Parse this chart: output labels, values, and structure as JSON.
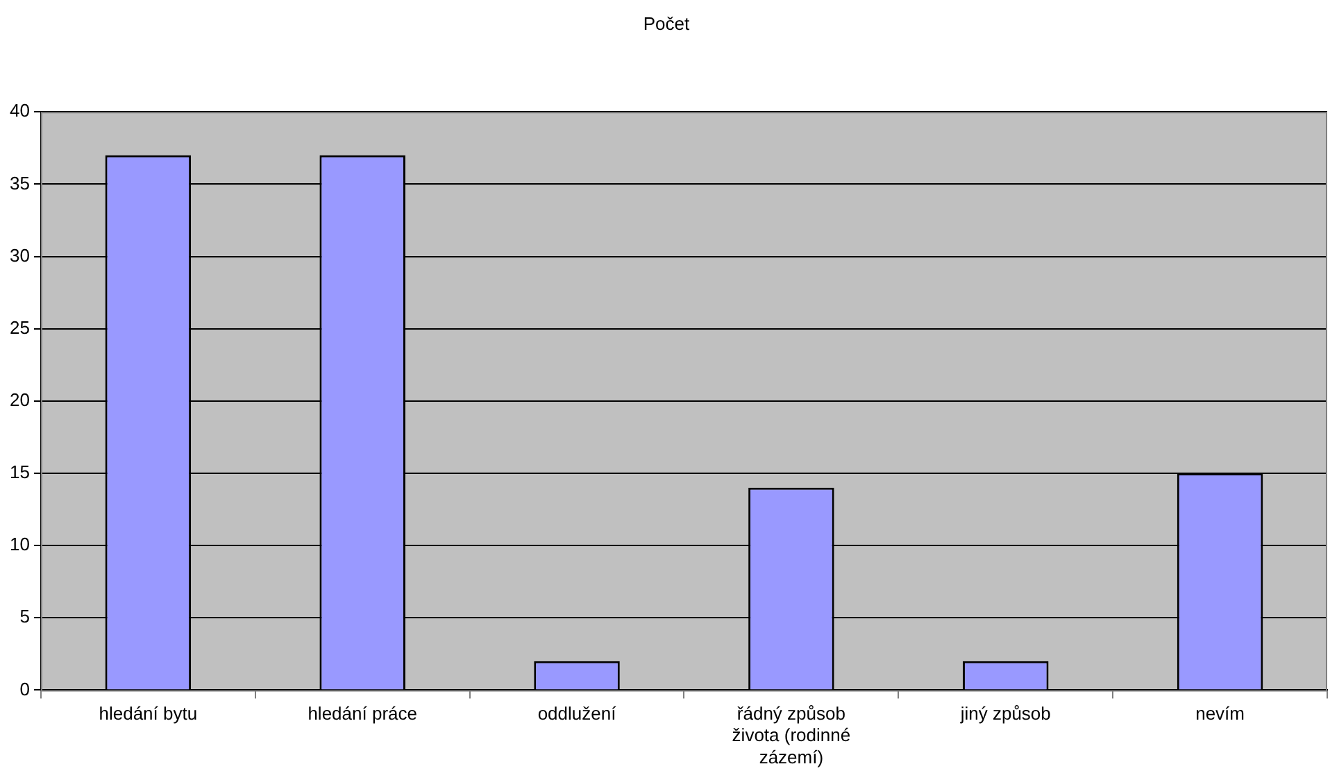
{
  "chart_data": {
    "type": "bar",
    "title": "Počet",
    "categories": [
      "hledání bytu",
      "hledání práce",
      "oddlužení",
      "řádný způsob života (rodinné zázemí)",
      "jiný způsob",
      "nevím"
    ],
    "values": [
      37,
      37,
      2,
      14,
      2,
      15
    ],
    "color": "#9999ff",
    "ylim": [
      0,
      40
    ],
    "yticks": [
      0,
      5,
      10,
      15,
      20,
      25,
      30,
      35,
      40
    ],
    "grid": "y"
  }
}
